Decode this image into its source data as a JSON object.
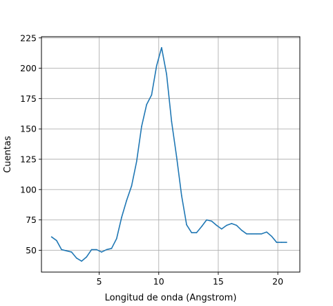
{
  "chart_data": {
    "type": "line",
    "xlabel": "Longitud de onda (Angstrom)",
    "ylabel": "Cuentas",
    "xlim": [
      0.15,
      21.85
    ],
    "ylim": [
      32,
      226
    ],
    "xticks": [
      5,
      10,
      15,
      20
    ],
    "yticks": [
      50,
      75,
      100,
      125,
      150,
      175,
      200,
      225
    ],
    "grid": true,
    "series": [
      {
        "color": "#1f77b4",
        "x": [
          1.0,
          1.42,
          1.84,
          2.26,
          2.68,
          3.1,
          3.52,
          3.94,
          4.36,
          4.78,
          5.2,
          5.62,
          6.04,
          6.46,
          6.88,
          7.3,
          7.72,
          8.14,
          8.56,
          8.98,
          9.4,
          9.82,
          10.24,
          10.66,
          11.08,
          11.5,
          11.92,
          12.34,
          12.76,
          13.18,
          13.6,
          14.02,
          14.44,
          14.86,
          15.28,
          15.7,
          16.12,
          16.54,
          16.96,
          17.38,
          17.8,
          18.22,
          18.64,
          19.06,
          19.48,
          19.9,
          20.32,
          20.74
        ],
        "y": [
          61,
          58,
          50.5,
          49.5,
          48.5,
          43.5,
          41,
          44.5,
          50.5,
          50.5,
          48.5,
          50.5,
          51.5,
          59.5,
          77,
          91,
          103,
          123,
          152,
          170,
          178,
          202,
          217,
          195,
          156,
          127,
          95,
          71,
          64.5,
          64.5,
          69.5,
          75,
          74,
          70.5,
          67.5,
          70.5,
          72,
          70.5,
          66.5,
          63.5,
          63.5,
          63.5,
          63.5,
          65,
          61.5,
          56.5,
          56.5,
          56.5
        ]
      }
    ]
  }
}
